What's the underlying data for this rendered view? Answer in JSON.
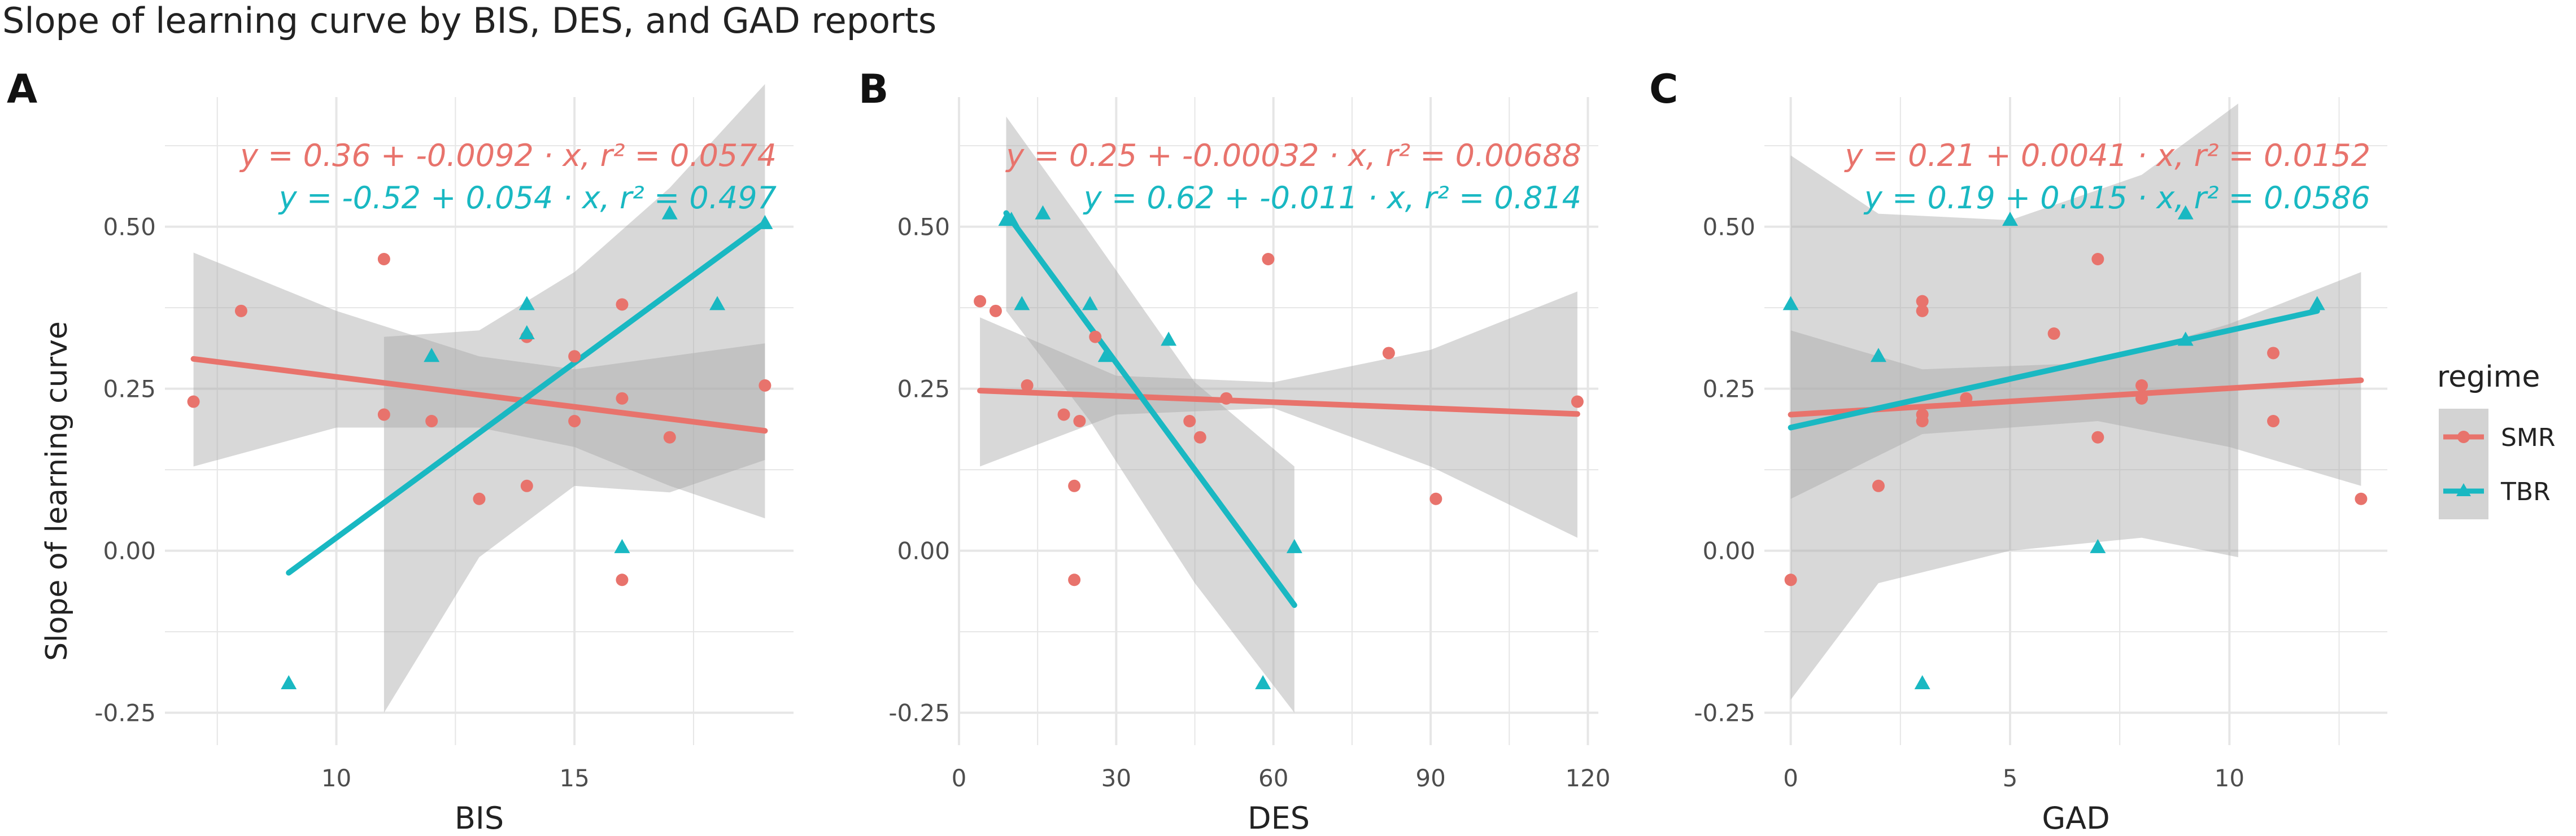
{
  "figure": {
    "title": "Slope of learning curve by BIS, DES, and GAD reports",
    "ylabel": "Slope of learning curve"
  },
  "colors": {
    "SMR": "#E8736C",
    "TBR": "#19B8C2",
    "band": "#A9A9A9",
    "grid": "#E6E6E6",
    "text": "#222222",
    "tick": "#4D4D4D"
  },
  "legend": {
    "title": "regime",
    "items": [
      {
        "label": "SMR",
        "shape": "circle"
      },
      {
        "label": "TBR",
        "shape": "triangle"
      }
    ]
  },
  "chart_data": [
    {
      "type": "scatter",
      "panel_label": "A",
      "title": "",
      "xlabel": "BIS",
      "ylabel": "Slope of learning curve",
      "xlim": [
        6.4,
        19.6
      ],
      "ylim": [
        -0.3,
        0.7
      ],
      "xticks": [
        10,
        15
      ],
      "xticklabels": [
        "10",
        "15"
      ],
      "yticks": [
        -0.25,
        0,
        0.25,
        0.5
      ],
      "yticklabels": [
        "-0.25",
        "0.00",
        "0.25",
        "0.50"
      ],
      "series": [
        {
          "name": "SMR",
          "shape": "circle",
          "points": [
            [
              7,
              0.23
            ],
            [
              8,
              0.37
            ],
            [
              11,
              0.45
            ],
            [
              11,
              0.21
            ],
            [
              12,
              0.2
            ],
            [
              13,
              0.08
            ],
            [
              14,
              0.1
            ],
            [
              14,
              0.33
            ],
            [
              15,
              0.3
            ],
            [
              15,
              0.2
            ],
            [
              16,
              0.38
            ],
            [
              16,
              0.235
            ],
            [
              16,
              -0.045
            ],
            [
              17,
              0.175
            ],
            [
              19,
              0.255
            ]
          ],
          "fit": {
            "x": [
              7,
              19
            ],
            "y": [
              0.296,
              0.185
            ]
          },
          "band": {
            "x": [
              7,
              10,
              13,
              15,
              17,
              19
            ],
            "upper": [
              0.46,
              0.37,
              0.3,
              0.28,
              0.3,
              0.32
            ],
            "lower": [
              0.13,
              0.19,
              0.19,
              0.16,
              0.1,
              0.05
            ]
          },
          "equation": "y = 0.36 + -0.0092 · x,   r² = 0.0574"
        },
        {
          "name": "TBR",
          "shape": "triangle",
          "points": [
            [
              9,
              -0.205
            ],
            [
              12,
              0.3
            ],
            [
              14,
              0.38
            ],
            [
              14,
              0.335
            ],
            [
              16,
              0.005
            ],
            [
              17,
              0.52
            ],
            [
              18,
              0.38
            ],
            [
              19,
              0.505
            ]
          ],
          "fit": {
            "x": [
              9,
              19
            ],
            "y": [
              -0.034,
              0.506
            ]
          },
          "band": {
            "x": [
              11,
              13,
              15,
              17,
              19
            ],
            "upper": [
              0.33,
              0.34,
              0.43,
              0.56,
              0.72
            ],
            "lower": [
              -0.25,
              -0.01,
              0.1,
              0.09,
              0.14
            ]
          },
          "equation": "y = -0.52 + 0.054 · x,   r² = 0.497"
        }
      ]
    },
    {
      "type": "scatter",
      "panel_label": "B",
      "title": "",
      "xlabel": "DES",
      "ylabel": "",
      "xlim": [
        0,
        122
      ],
      "ylim": [
        -0.3,
        0.7
      ],
      "xticks": [
        0,
        30,
        60,
        90,
        120
      ],
      "xticklabels": [
        "0",
        "30",
        "60",
        "90",
        "120"
      ],
      "yticks": [
        -0.25,
        0,
        0.25,
        0.5
      ],
      "yticklabels": [
        "-0.25",
        "0.00",
        "0.25",
        "0.50"
      ],
      "series": [
        {
          "name": "SMR",
          "shape": "circle",
          "points": [
            [
              4,
              0.385
            ],
            [
              7,
              0.37
            ],
            [
              13,
              0.255
            ],
            [
              20,
              0.21
            ],
            [
              22,
              0.1
            ],
            [
              22,
              -0.045
            ],
            [
              23,
              0.2
            ],
            [
              26,
              0.33
            ],
            [
              44,
              0.2
            ],
            [
              46,
              0.175
            ],
            [
              51,
              0.235
            ],
            [
              59,
              0.45
            ],
            [
              82,
              0.305
            ],
            [
              91,
              0.08
            ],
            [
              118,
              0.23
            ]
          ],
          "fit": {
            "x": [
              4,
              118
            ],
            "y": [
              0.247,
              0.211
            ]
          },
          "band": {
            "x": [
              4,
              30,
              60,
              90,
              118
            ],
            "upper": [
              0.36,
              0.27,
              0.26,
              0.31,
              0.4
            ],
            "lower": [
              0.13,
              0.21,
              0.22,
              0.13,
              0.02
            ]
          },
          "equation": "y = 0.25 + -0.00032 · x,   r² = 0.00688"
        },
        {
          "name": "TBR",
          "shape": "triangle",
          "points": [
            [
              9,
              0.51
            ],
            [
              10,
              0.51
            ],
            [
              12,
              0.38
            ],
            [
              16,
              0.52
            ],
            [
              25,
              0.38
            ],
            [
              28,
              0.3
            ],
            [
              40,
              0.325
            ],
            [
              58,
              -0.205
            ],
            [
              64,
              0.005
            ]
          ],
          "fit": {
            "x": [
              9,
              64
            ],
            "y": [
              0.521,
              -0.084
            ]
          },
          "band": {
            "x": [
              9,
              25,
              45,
              64
            ],
            "upper": [
              0.67,
              0.49,
              0.26,
              0.13
            ],
            "lower": [
              0.37,
              0.2,
              -0.05,
              -0.25
            ]
          },
          "equation": "y = 0.62 + -0.011 · x,   r² = 0.814"
        }
      ]
    },
    {
      "type": "scatter",
      "panel_label": "C",
      "title": "",
      "xlabel": "GAD",
      "ylabel": "",
      "xlim": [
        -0.6,
        13.6
      ],
      "ylim": [
        -0.3,
        0.7
      ],
      "xticks": [
        0,
        5,
        10
      ],
      "xticklabels": [
        "0",
        "5",
        "10"
      ],
      "yticks": [
        -0.25,
        0,
        0.25,
        0.5
      ],
      "yticklabels": [
        "-0.25",
        "0.00",
        "0.25",
        "0.50"
      ],
      "series": [
        {
          "name": "SMR",
          "shape": "circle",
          "points": [
            [
              0,
              -0.045
            ],
            [
              2,
              0.1
            ],
            [
              3,
              0.385
            ],
            [
              3,
              0.37
            ],
            [
              3,
              0.21
            ],
            [
              3,
              0.2
            ],
            [
              4,
              0.235
            ],
            [
              6,
              0.335
            ],
            [
              7,
              0.45
            ],
            [
              7,
              0.175
            ],
            [
              8,
              0.255
            ],
            [
              8,
              0.235
            ],
            [
              11,
              0.305
            ],
            [
              11,
              0.2
            ],
            [
              13,
              0.08
            ]
          ],
          "fit": {
            "x": [
              0,
              13
            ],
            "y": [
              0.21,
              0.263
            ]
          },
          "band": {
            "x": [
              0,
              3,
              7,
              10,
              13
            ],
            "upper": [
              0.34,
              0.28,
              0.29,
              0.35,
              0.43
            ],
            "lower": [
              0.08,
              0.18,
              0.2,
              0.16,
              0.1
            ]
          },
          "equation": "y = 0.21 + 0.0041 · x,   r² = 0.0152"
        },
        {
          "name": "TBR",
          "shape": "triangle",
          "points": [
            [
              0,
              0.38
            ],
            [
              2,
              0.3
            ],
            [
              3,
              -0.205
            ],
            [
              5,
              0.51
            ],
            [
              7,
              0.005
            ],
            [
              9,
              0.52
            ],
            [
              9,
              0.325
            ],
            [
              12,
              0.38
            ]
          ],
          "fit": {
            "x": [
              0,
              12
            ],
            "y": [
              0.19,
              0.37
            ]
          },
          "band": {
            "x": [
              0,
              2,
              5,
              8,
              10.2
            ],
            "upper": [
              0.61,
              0.52,
              0.51,
              0.58,
              0.69
            ],
            "lower": [
              -0.23,
              -0.05,
              0.0,
              0.02,
              -0.01
            ]
          },
          "equation": "y = 0.19 + 0.015 · x,   r² = 0.0586"
        }
      ]
    }
  ]
}
